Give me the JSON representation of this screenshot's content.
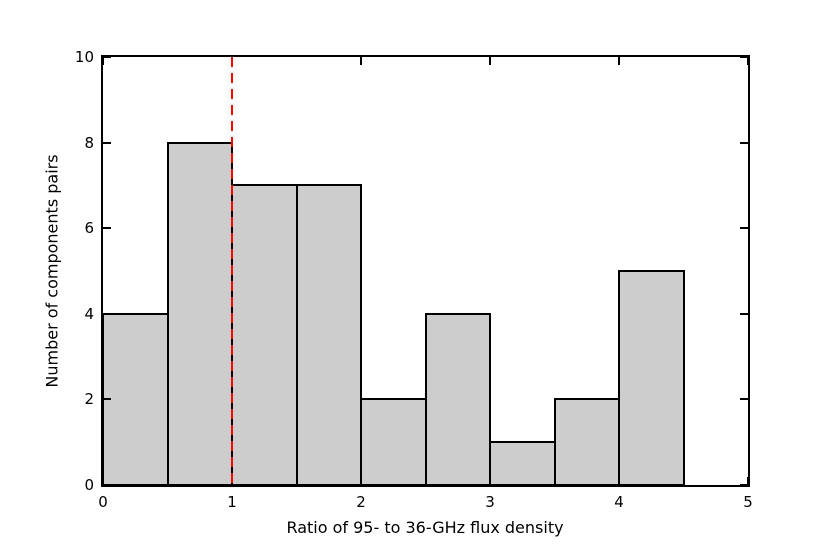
{
  "figure": {
    "background_color": "#ffffff",
    "axis_color": "#000000",
    "text_color": "#000000"
  },
  "chart_data": {
    "type": "bar",
    "subtype": "histogram",
    "title": "",
    "xlabel": "Ratio of 95- to 36-GHz flux density",
    "ylabel": "Number of components pairs",
    "bin_edges": [
      0,
      0.5,
      1.0,
      1.5,
      2.0,
      2.5,
      3.0,
      3.5,
      4.0,
      4.5,
      5.0
    ],
    "values": [
      4,
      8,
      7,
      7,
      2,
      4,
      1,
      2,
      5,
      0
    ],
    "xlim": [
      0,
      5
    ],
    "ylim": [
      0,
      10
    ],
    "xticks": [
      0,
      1,
      2,
      3,
      4,
      5
    ],
    "yticks": [
      0,
      2,
      4,
      6,
      8,
      10
    ],
    "grid": false,
    "legend": null,
    "bar_fill_color": "#cdcdcd",
    "bar_edge_color": "#000000",
    "reference_line": {
      "orientation": "vertical",
      "x": 1,
      "color": "#ff0000",
      "style": "dashed"
    }
  }
}
